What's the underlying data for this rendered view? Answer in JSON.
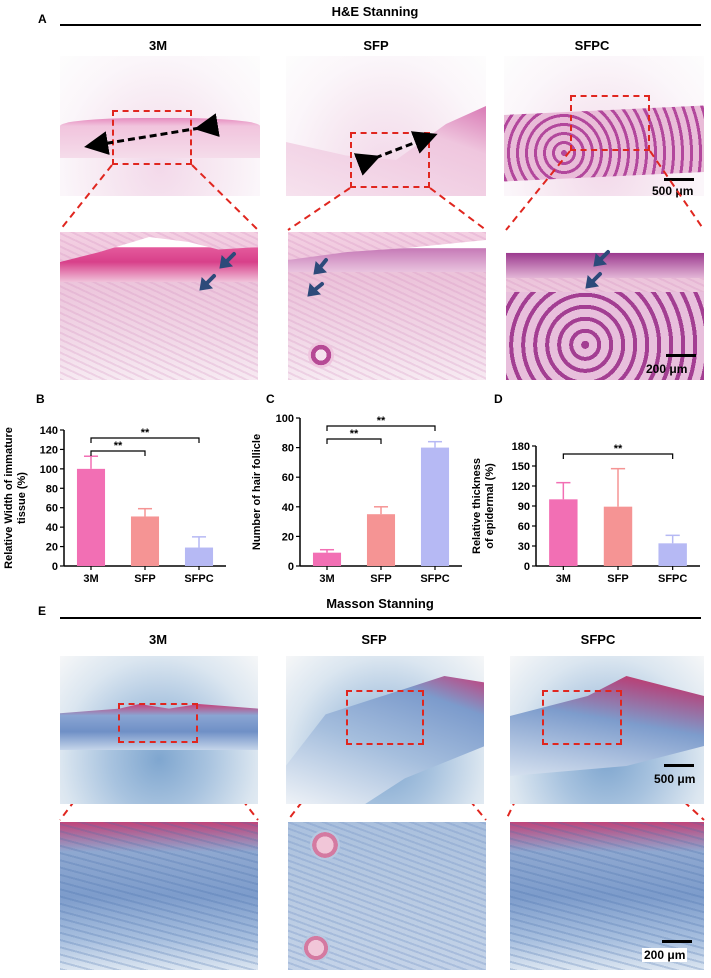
{
  "panel_letters": {
    "a": "A",
    "b": "B",
    "c": "C",
    "d": "D",
    "e": "E"
  },
  "he": {
    "title": "H&E Stanning",
    "columns": [
      "3M",
      "SFP",
      "SFPC"
    ],
    "scale_low": "500 μm",
    "scale_high": "200 μm"
  },
  "masson": {
    "title": "Masson Stanning",
    "columns": [
      "3M",
      "SFP",
      "SFPC"
    ],
    "scale_low": "500 μm",
    "scale_high": "200 μm"
  },
  "colors": {
    "pink": "#f26fb4",
    "salmon": "#f59494",
    "lavender": "#b6b9f4",
    "dash": "#e0261f",
    "arrow": "#2d4a7a"
  },
  "chart_data": [
    {
      "type": "bar",
      "ylabel": "Relative Width of immature tissue (%)",
      "categories": [
        "3M",
        "SFP",
        "SFPC"
      ],
      "values": [
        100,
        51,
        19
      ],
      "errors": [
        13,
        8,
        11
      ],
      "ylim": [
        0,
        140
      ],
      "yticks": [
        "0",
        "20",
        "40",
        "60",
        "80",
        "100",
        "120",
        "140"
      ],
      "significance": [
        {
          "from": "3M",
          "to": "SFP",
          "label": "**"
        },
        {
          "from": "3M",
          "to": "SFPC",
          "label": "**"
        }
      ]
    },
    {
      "type": "bar",
      "ylabel": "Number of hair follicle",
      "categories": [
        "3M",
        "SFP",
        "SFPC"
      ],
      "values": [
        9,
        35,
        80
      ],
      "errors": [
        2,
        5,
        4
      ],
      "ylim": [
        0,
        100
      ],
      "yticks": [
        "0",
        "20",
        "40",
        "60",
        "80",
        "100"
      ],
      "significance": [
        {
          "from": "3M",
          "to": "SFP",
          "label": "**"
        },
        {
          "from": "3M",
          "to": "SFPC",
          "label": "**"
        }
      ]
    },
    {
      "type": "bar",
      "ylabel": "Relative thickness of epidermal (%)",
      "categories": [
        "3M",
        "SFP",
        "SFPC"
      ],
      "values": [
        100,
        89,
        34
      ],
      "errors": [
        25,
        57,
        12
      ],
      "ylim": [
        0,
        180
      ],
      "yticks": [
        "0",
        "30",
        "60",
        "90",
        "120",
        "150",
        "180"
      ],
      "significance": [
        {
          "from": "3M",
          "to": "SFPC",
          "label": "**"
        }
      ]
    }
  ]
}
